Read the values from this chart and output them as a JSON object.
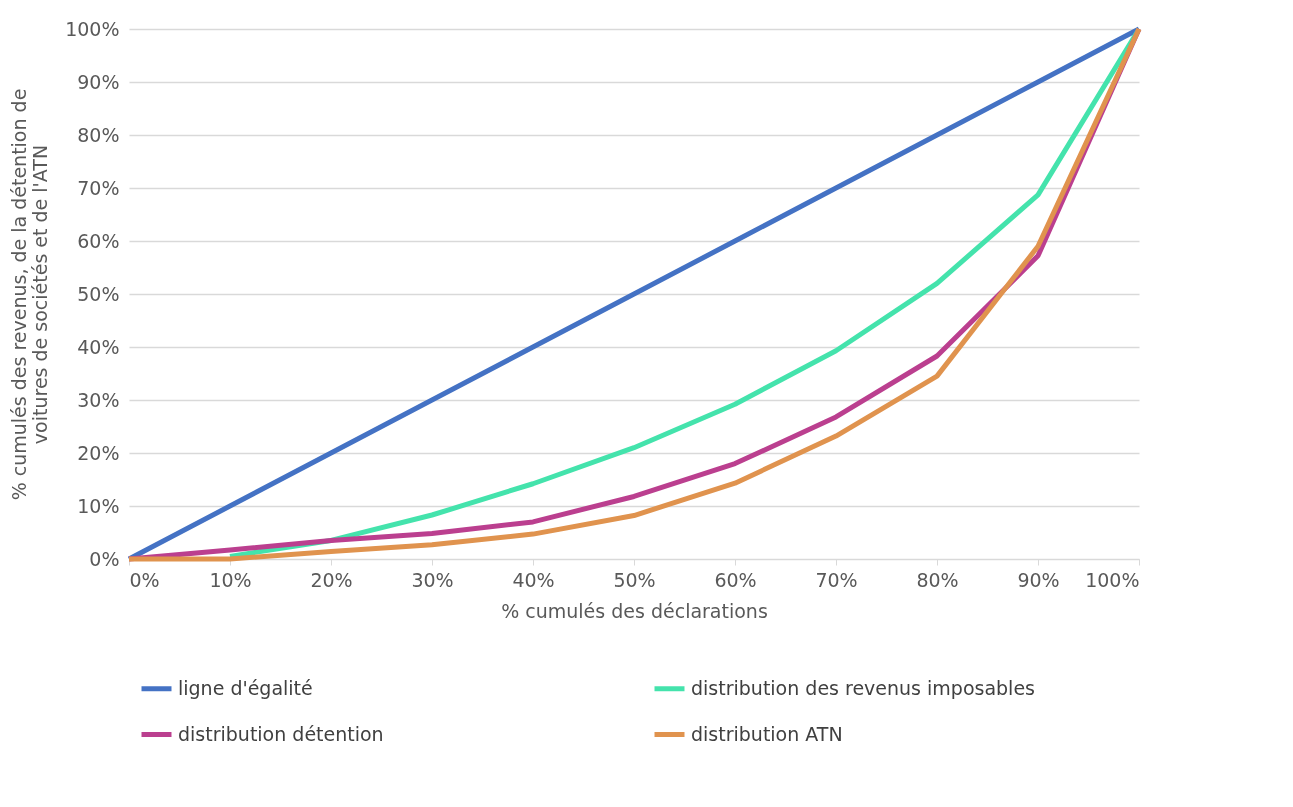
{
  "chart_data": {
    "type": "line",
    "xlabel": "% cumulés des déclarations",
    "ylabel": "% cumulés des revenus, de la détention de voitures de sociétés et de l'ATN",
    "x": [
      0,
      10,
      20,
      30,
      40,
      50,
      60,
      70,
      80,
      90,
      100
    ],
    "series": [
      {
        "name": "ligne d'égalité",
        "color": "#4472c4",
        "values": [
          0,
          10,
          20,
          30,
          40,
          50,
          60,
          70,
          80,
          90,
          100
        ]
      },
      {
        "name": "distribution des revenus imposables",
        "color": "#44e3ac",
        "values": [
          null,
          0.5,
          3.5,
          8.3,
          14.2,
          21,
          29.2,
          39.3,
          52,
          68.7,
          100
        ]
      },
      {
        "name": "distribution détention",
        "color": "#bb3f8f",
        "values": [
          0,
          1.7,
          3.5,
          4.8,
          7,
          11.8,
          18,
          26.8,
          38.3,
          57.2,
          100
        ]
      },
      {
        "name": "distribution ATN",
        "color": "#e0934e",
        "values": [
          0,
          0,
          1.4,
          2.7,
          4.7,
          8.2,
          14.3,
          23.2,
          34.5,
          59,
          100
        ]
      }
    ],
    "xlim": [
      0,
      100
    ],
    "xticks": [
      {
        "value": 0,
        "label": "0%"
      },
      {
        "value": 10,
        "label": "10%"
      },
      {
        "value": 20,
        "label": "20%"
      },
      {
        "value": 30,
        "label": "30%"
      },
      {
        "value": 40,
        "label": "40%"
      },
      {
        "value": 50,
        "label": "50%"
      },
      {
        "value": 60,
        "label": "60%"
      },
      {
        "value": 70,
        "label": "70%"
      },
      {
        "value": 80,
        "label": "80%"
      },
      {
        "value": 90,
        "label": "90%"
      },
      {
        "value": 100,
        "label": "100%"
      }
    ],
    "ylim": [
      0,
      100
    ],
    "yticks": [
      {
        "value": 0,
        "label": "0%"
      },
      {
        "value": 10,
        "label": "10%"
      },
      {
        "value": 20,
        "label": "20%"
      },
      {
        "value": 30,
        "label": "30%"
      },
      {
        "value": 40,
        "label": "40%"
      },
      {
        "value": 50,
        "label": "50%"
      },
      {
        "value": 60,
        "label": "60%"
      },
      {
        "value": 70,
        "label": "70%"
      },
      {
        "value": 80,
        "label": "80%"
      },
      {
        "value": 90,
        "label": "90%"
      },
      {
        "value": 100,
        "label": "100%"
      }
    ],
    "grid": "y",
    "legend": "bottom",
    "marker": "none",
    "line_style": "solid"
  }
}
